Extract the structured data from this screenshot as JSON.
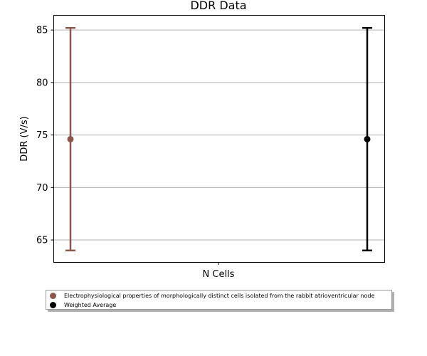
{
  "chart_data": {
    "type": "errorbar",
    "title": "DDR Data",
    "xlabel": "N Cells",
    "ylabel": "DDR (V/s)",
    "ylim": [
      62.9,
      86.4
    ],
    "yticks": [
      65,
      70,
      75,
      80,
      85
    ],
    "grid": "horizontal",
    "legend_position": "bottom",
    "series": [
      {
        "name": "Electrophysiological properties of morphologically distinct cells isolated from the rabbit atrioventricular node",
        "color": "#8c564b",
        "x_position": "left",
        "mean": 74.6,
        "lower": 64.0,
        "upper": 85.2
      },
      {
        "name": "Weighted Average",
        "color": "#000000",
        "x_position": "right",
        "mean": 74.6,
        "lower": 64.0,
        "upper": 85.2
      }
    ]
  }
}
